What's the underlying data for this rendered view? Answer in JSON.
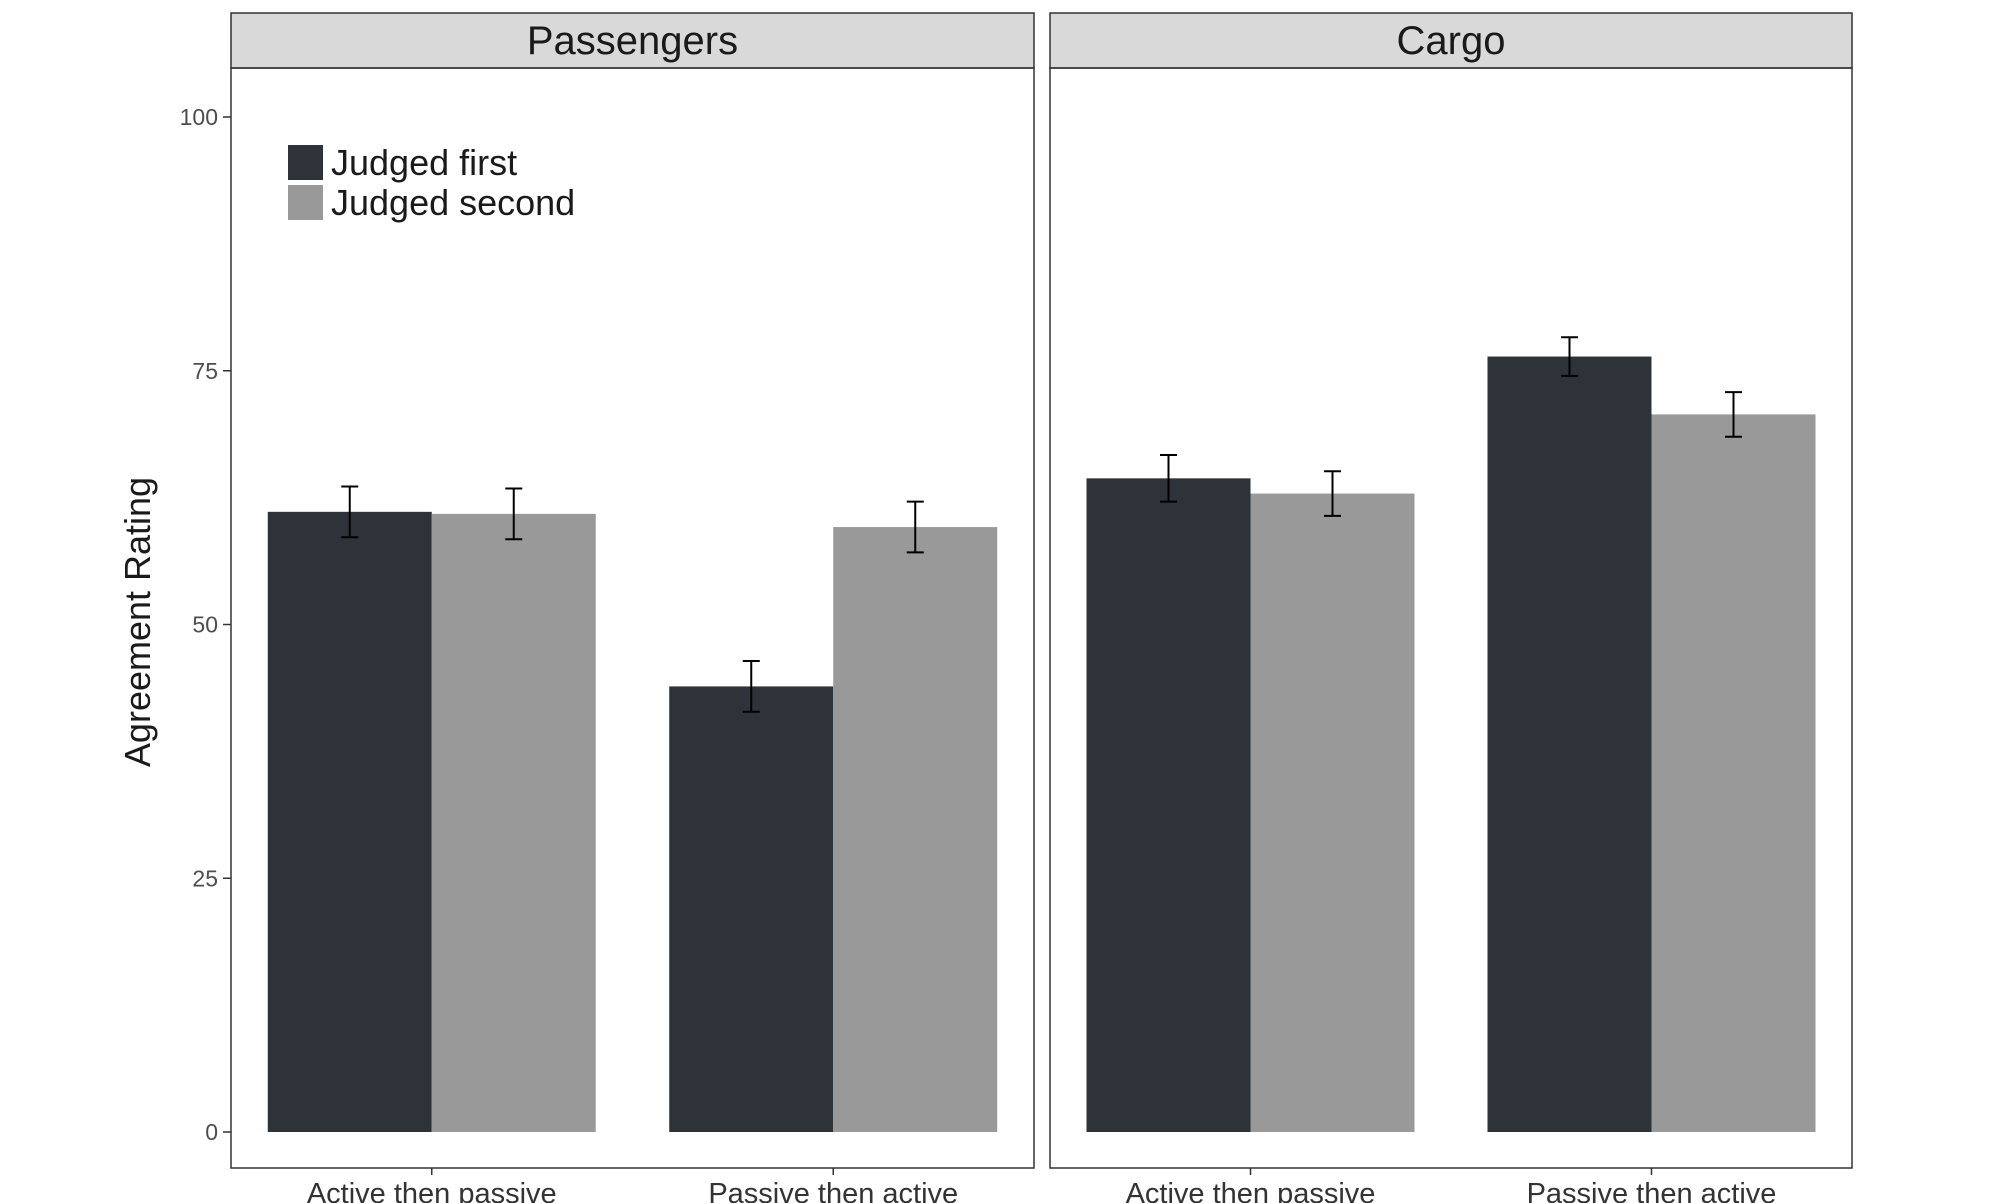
{
  "chart_data": {
    "type": "bar",
    "ylabel": "Agreement Rating",
    "ylim": [
      0,
      105
    ],
    "yticks": [
      0,
      25,
      50,
      75,
      100
    ],
    "categories": [
      "Active then passive",
      "Passive then active"
    ],
    "legend": {
      "placement": "top-left inside first panel",
      "entries": [
        "Judged first",
        "Judged second"
      ]
    },
    "colors": {
      "Judged first": "#2d3339",
      "Judged second": "#999999"
    },
    "panels": [
      {
        "title": "Passengers",
        "series": [
          {
            "name": "Judged first",
            "values": [
              61.1,
              43.9
            ],
            "error": [
              2.5,
              2.5
            ]
          },
          {
            "name": "Judged second",
            "values": [
              60.9,
              59.6
            ],
            "error": [
              2.5,
              2.5
            ]
          }
        ]
      },
      {
        "title": "Cargo",
        "series": [
          {
            "name": "Judged first",
            "values": [
              64.4,
              76.4
            ],
            "error": [
              2.3,
              1.9
            ]
          },
          {
            "name": "Judged second",
            "values": [
              62.9,
              70.7
            ],
            "error": [
              2.2,
              2.2
            ]
          }
        ]
      }
    ],
    "grid": false
  }
}
